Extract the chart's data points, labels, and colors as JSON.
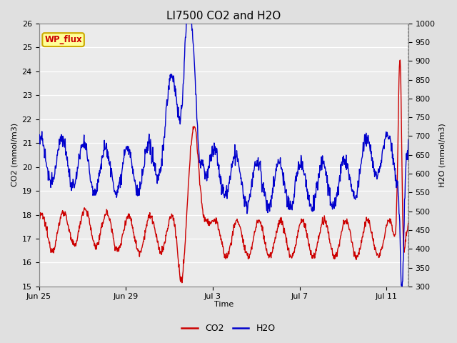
{
  "title": "LI7500 CO2 and H2O",
  "xlabel": "Time",
  "ylabel_left": "CO2 (mmol/m3)",
  "ylabel_right": "H2O (mmol/m3)",
  "ylim_left": [
    15.0,
    26.0
  ],
  "ylim_right": [
    300,
    1000
  ],
  "yticks_left": [
    15.0,
    16.0,
    17.0,
    18.0,
    19.0,
    20.0,
    21.0,
    22.0,
    23.0,
    24.0,
    25.0,
    26.0
  ],
  "yticks_right": [
    300,
    350,
    400,
    450,
    500,
    550,
    600,
    650,
    700,
    750,
    800,
    850,
    900,
    950,
    1000
  ],
  "xtick_positions": [
    0,
    4,
    8,
    12,
    16
  ],
  "xtick_labels": [
    "Jun 25",
    "Jun 29",
    "Jul 3",
    "Jul 7",
    "Jul 11"
  ],
  "xlim": [
    0,
    17
  ],
  "co2_color": "#cc0000",
  "h2o_color": "#0000cc",
  "fig_bg_color": "#e0e0e0",
  "plot_bg_color": "#ebebeb",
  "grid_color": "#ffffff",
  "annotation_text": "WP_flux",
  "annotation_bg": "#ffff99",
  "annotation_border": "#ccaa00",
  "title_fontsize": 11,
  "label_fontsize": 8,
  "tick_fontsize": 8,
  "legend_fontsize": 9,
  "line_width": 1.0
}
